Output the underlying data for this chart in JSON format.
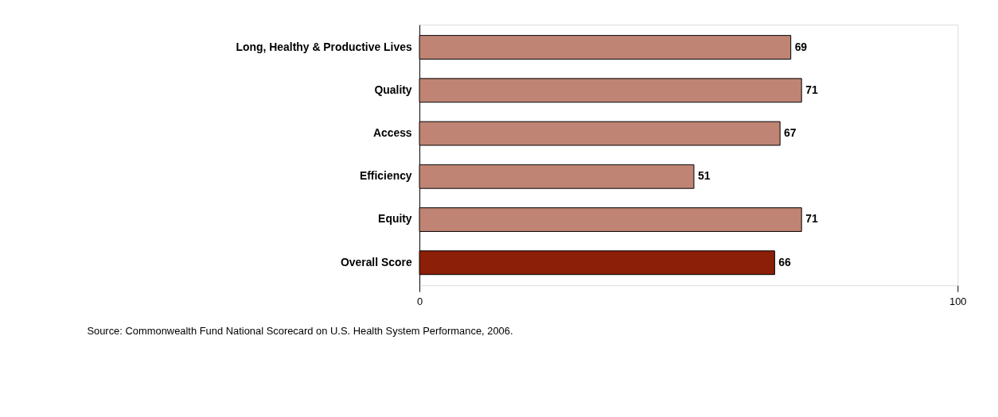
{
  "chart_data": {
    "type": "bar",
    "orientation": "horizontal",
    "categories": [
      "Long, Healthy & Productive Lives",
      "Quality",
      "Access",
      "Efficiency",
      "Equity",
      "Overall Score"
    ],
    "values": [
      69,
      71,
      67,
      51,
      71,
      66
    ],
    "colors": [
      "#c08474",
      "#c08474",
      "#c08474",
      "#c08474",
      "#c08474",
      "#8b1f08"
    ],
    "xlim": [
      0,
      100
    ],
    "xticks": [
      0,
      100
    ],
    "grid": false,
    "data_labels": true,
    "annotations": [
      "Source: Commonwealth Fund National Scorecard on U.S. Health System Performance, 2006."
    ]
  }
}
